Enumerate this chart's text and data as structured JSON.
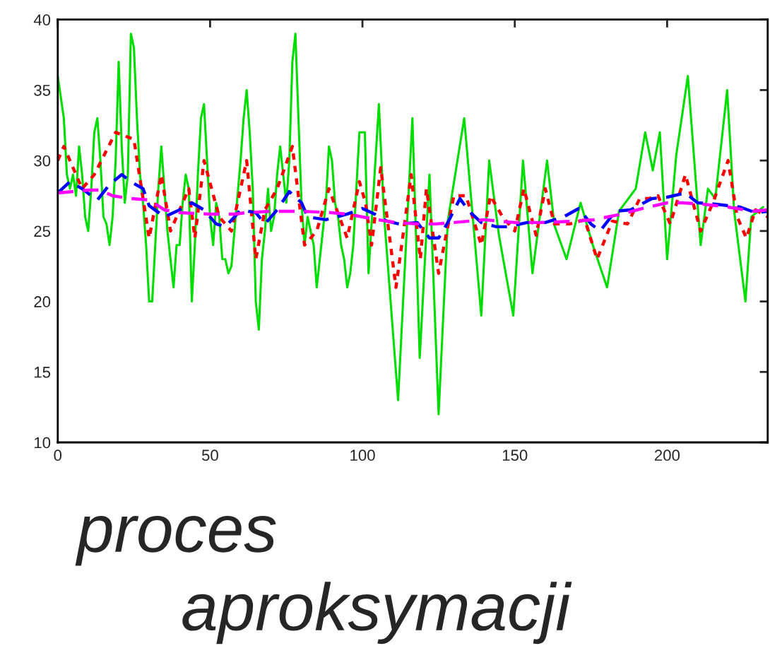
{
  "chart_data": {
    "type": "line",
    "xlim": [
      0,
      233
    ],
    "ylim": [
      10,
      40
    ],
    "xticks": [
      0,
      50,
      100,
      150,
      200
    ],
    "yticks": [
      10,
      15,
      20,
      25,
      30,
      35,
      40
    ],
    "grid": false,
    "marker": "none",
    "series": [
      {
        "color": "#00dd00",
        "line_style": "solid",
        "x": [
          0,
          2,
          3,
          4,
          5,
          6,
          7,
          8,
          9,
          10,
          11,
          12,
          13,
          14,
          15,
          16,
          17,
          18,
          19,
          20,
          21,
          22,
          23,
          24,
          25,
          26,
          27,
          28,
          29,
          30,
          31,
          32,
          33,
          34,
          35,
          36,
          37,
          38,
          39,
          40,
          41,
          42,
          43,
          44,
          45,
          46,
          47,
          48,
          49,
          50,
          51,
          52,
          53,
          54,
          55,
          56,
          57,
          58,
          60,
          61,
          62,
          63,
          64,
          65,
          66,
          67,
          68,
          69,
          70,
          71,
          72,
          73,
          74,
          75,
          76,
          77,
          78,
          79,
          80,
          81,
          82,
          83,
          84,
          85,
          86,
          87,
          88,
          89,
          90,
          91,
          92,
          93,
          94,
          95,
          96,
          97,
          98,
          99,
          100.8,
          102,
          105.4,
          107,
          111.7,
          116.4,
          118.8,
          122,
          125,
          128,
          133.4,
          139,
          141.6,
          144.8,
          149.5,
          152.7,
          155.8,
          160.6,
          163,
          167,
          171.6,
          175.6,
          180.3,
          184.2,
          189.7,
          192.8,
          195.3,
          197.6,
          200,
          203,
          206.8,
          211,
          213.4,
          215.8,
          219.7,
          222,
          225.7,
          227.6,
          231.5
        ],
        "values": [
          36,
          33,
          29,
          28,
          29,
          27.5,
          31,
          29,
          26,
          25,
          28,
          32,
          33,
          30,
          26,
          25.5,
          24,
          26,
          30,
          37,
          31,
          27,
          29,
          39,
          38,
          33,
          29,
          27,
          24,
          20,
          20,
          24,
          28,
          31,
          28,
          25,
          23,
          21,
          24,
          24,
          27,
          29,
          28,
          20,
          24,
          29,
          33,
          34,
          30,
          26,
          24,
          27,
          26,
          23,
          23,
          22,
          22.5,
          25,
          30,
          33,
          35,
          32,
          28,
          20,
          18,
          23,
          25,
          28,
          25,
          26,
          29,
          31,
          29,
          27,
          30,
          37,
          39,
          33,
          27,
          24,
          26,
          25,
          24,
          21,
          23,
          25,
          27,
          31,
          30,
          27,
          26,
          24,
          23,
          21,
          22,
          24,
          28,
          32,
          32,
          22,
          34,
          26.4,
          13,
          33,
          16,
          29,
          12,
          25.7,
          33,
          19,
          30,
          24.7,
          19,
          30,
          22,
          30,
          25.4,
          23,
          27,
          24,
          21,
          26.4,
          28,
          32,
          29.3,
          32,
          23,
          30.4,
          36,
          24,
          28,
          27.3,
          35,
          26.4,
          20,
          26,
          26.7
        ]
      },
      {
        "color": "#ff0000",
        "line_style": "dotted",
        "x": [
          0,
          2,
          8,
          12,
          19,
          25,
          30,
          34,
          37,
          43,
          45,
          48,
          53,
          57,
          62,
          65,
          68,
          72,
          77,
          81,
          85,
          89,
          95,
          99,
          101,
          103,
          106,
          111,
          116,
          119,
          121,
          125,
          130,
          134,
          139,
          142,
          146,
          150,
          153,
          157,
          160,
          163,
          168,
          173,
          177,
          182,
          187,
          191,
          194,
          197,
          201,
          206,
          211,
          215,
          220,
          223,
          226,
          229,
          233
        ],
        "values": [
          30,
          31,
          28,
          29,
          32,
          31.5,
          24.5,
          29,
          25,
          28,
          24.5,
          30,
          26,
          25,
          30,
          23,
          26.5,
          28,
          31,
          24,
          25,
          28,
          24.5,
          28.5,
          27,
          24,
          29.5,
          21,
          29,
          23,
          28,
          22,
          27.5,
          27.5,
          24,
          27.5,
          26,
          25,
          28,
          24.7,
          28,
          25.5,
          25.5,
          25.8,
          23,
          25.7,
          25.5,
          27.3,
          27.3,
          27.5,
          25.5,
          29,
          25,
          27,
          30,
          26,
          24.5,
          26.5,
          26
        ]
      },
      {
        "color": "#0000ff",
        "line_style": "dashed",
        "x": [
          0,
          4,
          8,
          11,
          13,
          17,
          21,
          24,
          28,
          30,
          35,
          40,
          44,
          48,
          52,
          55,
          58,
          60,
          65,
          68,
          72,
          76,
          80,
          82,
          88,
          95,
          100,
          104,
          108,
          112,
          118,
          122,
          125,
          128,
          132,
          135,
          139,
          144,
          148,
          154,
          160,
          166,
          171,
          175,
          178,
          183,
          188,
          195,
          200,
          206,
          210,
          216,
          220,
          224,
          229,
          233
        ],
        "values": [
          27.7,
          28.5,
          28,
          27.5,
          27.2,
          28.3,
          29,
          28.5,
          28,
          26.8,
          26,
          26.5,
          27,
          26.5,
          25.5,
          25.3,
          26,
          26.5,
          26.3,
          25.5,
          26.5,
          27.8,
          27,
          26,
          25.8,
          26.2,
          26.6,
          26.2,
          25.7,
          25.5,
          25.6,
          24.5,
          24.5,
          25.6,
          27.3,
          26.4,
          25.6,
          25.3,
          25.3,
          25.6,
          25.6,
          26,
          26.6,
          25.5,
          25,
          26.4,
          26.5,
          27.3,
          27.4,
          27.7,
          27,
          26.9,
          26.8,
          26.7,
          26.3,
          26.4
        ]
      },
      {
        "color": "#ff00ff",
        "line_style": "dashed",
        "x": [
          0,
          10,
          14,
          18,
          24,
          30,
          35,
          40,
          50,
          58,
          62,
          70,
          80,
          90,
          95,
          105,
          111,
          118,
          124,
          130,
          140,
          150,
          160,
          170,
          176,
          185,
          192,
          200,
          205,
          212,
          220,
          228,
          233
        ],
        "values": [
          27.7,
          27.9,
          27.9,
          27.5,
          27.3,
          27.2,
          26.5,
          26.3,
          26.2,
          26.2,
          26.3,
          26.4,
          26.4,
          26.3,
          26.2,
          25.8,
          25.6,
          25.5,
          25.5,
          25.6,
          25.8,
          25.6,
          25.6,
          25.7,
          25.8,
          26.2,
          26.6,
          27.0,
          27.0,
          26.9,
          26.7,
          26.4,
          26.5
        ]
      }
    ],
    "annotations": [
      "proces",
      "aproksymacji"
    ]
  }
}
